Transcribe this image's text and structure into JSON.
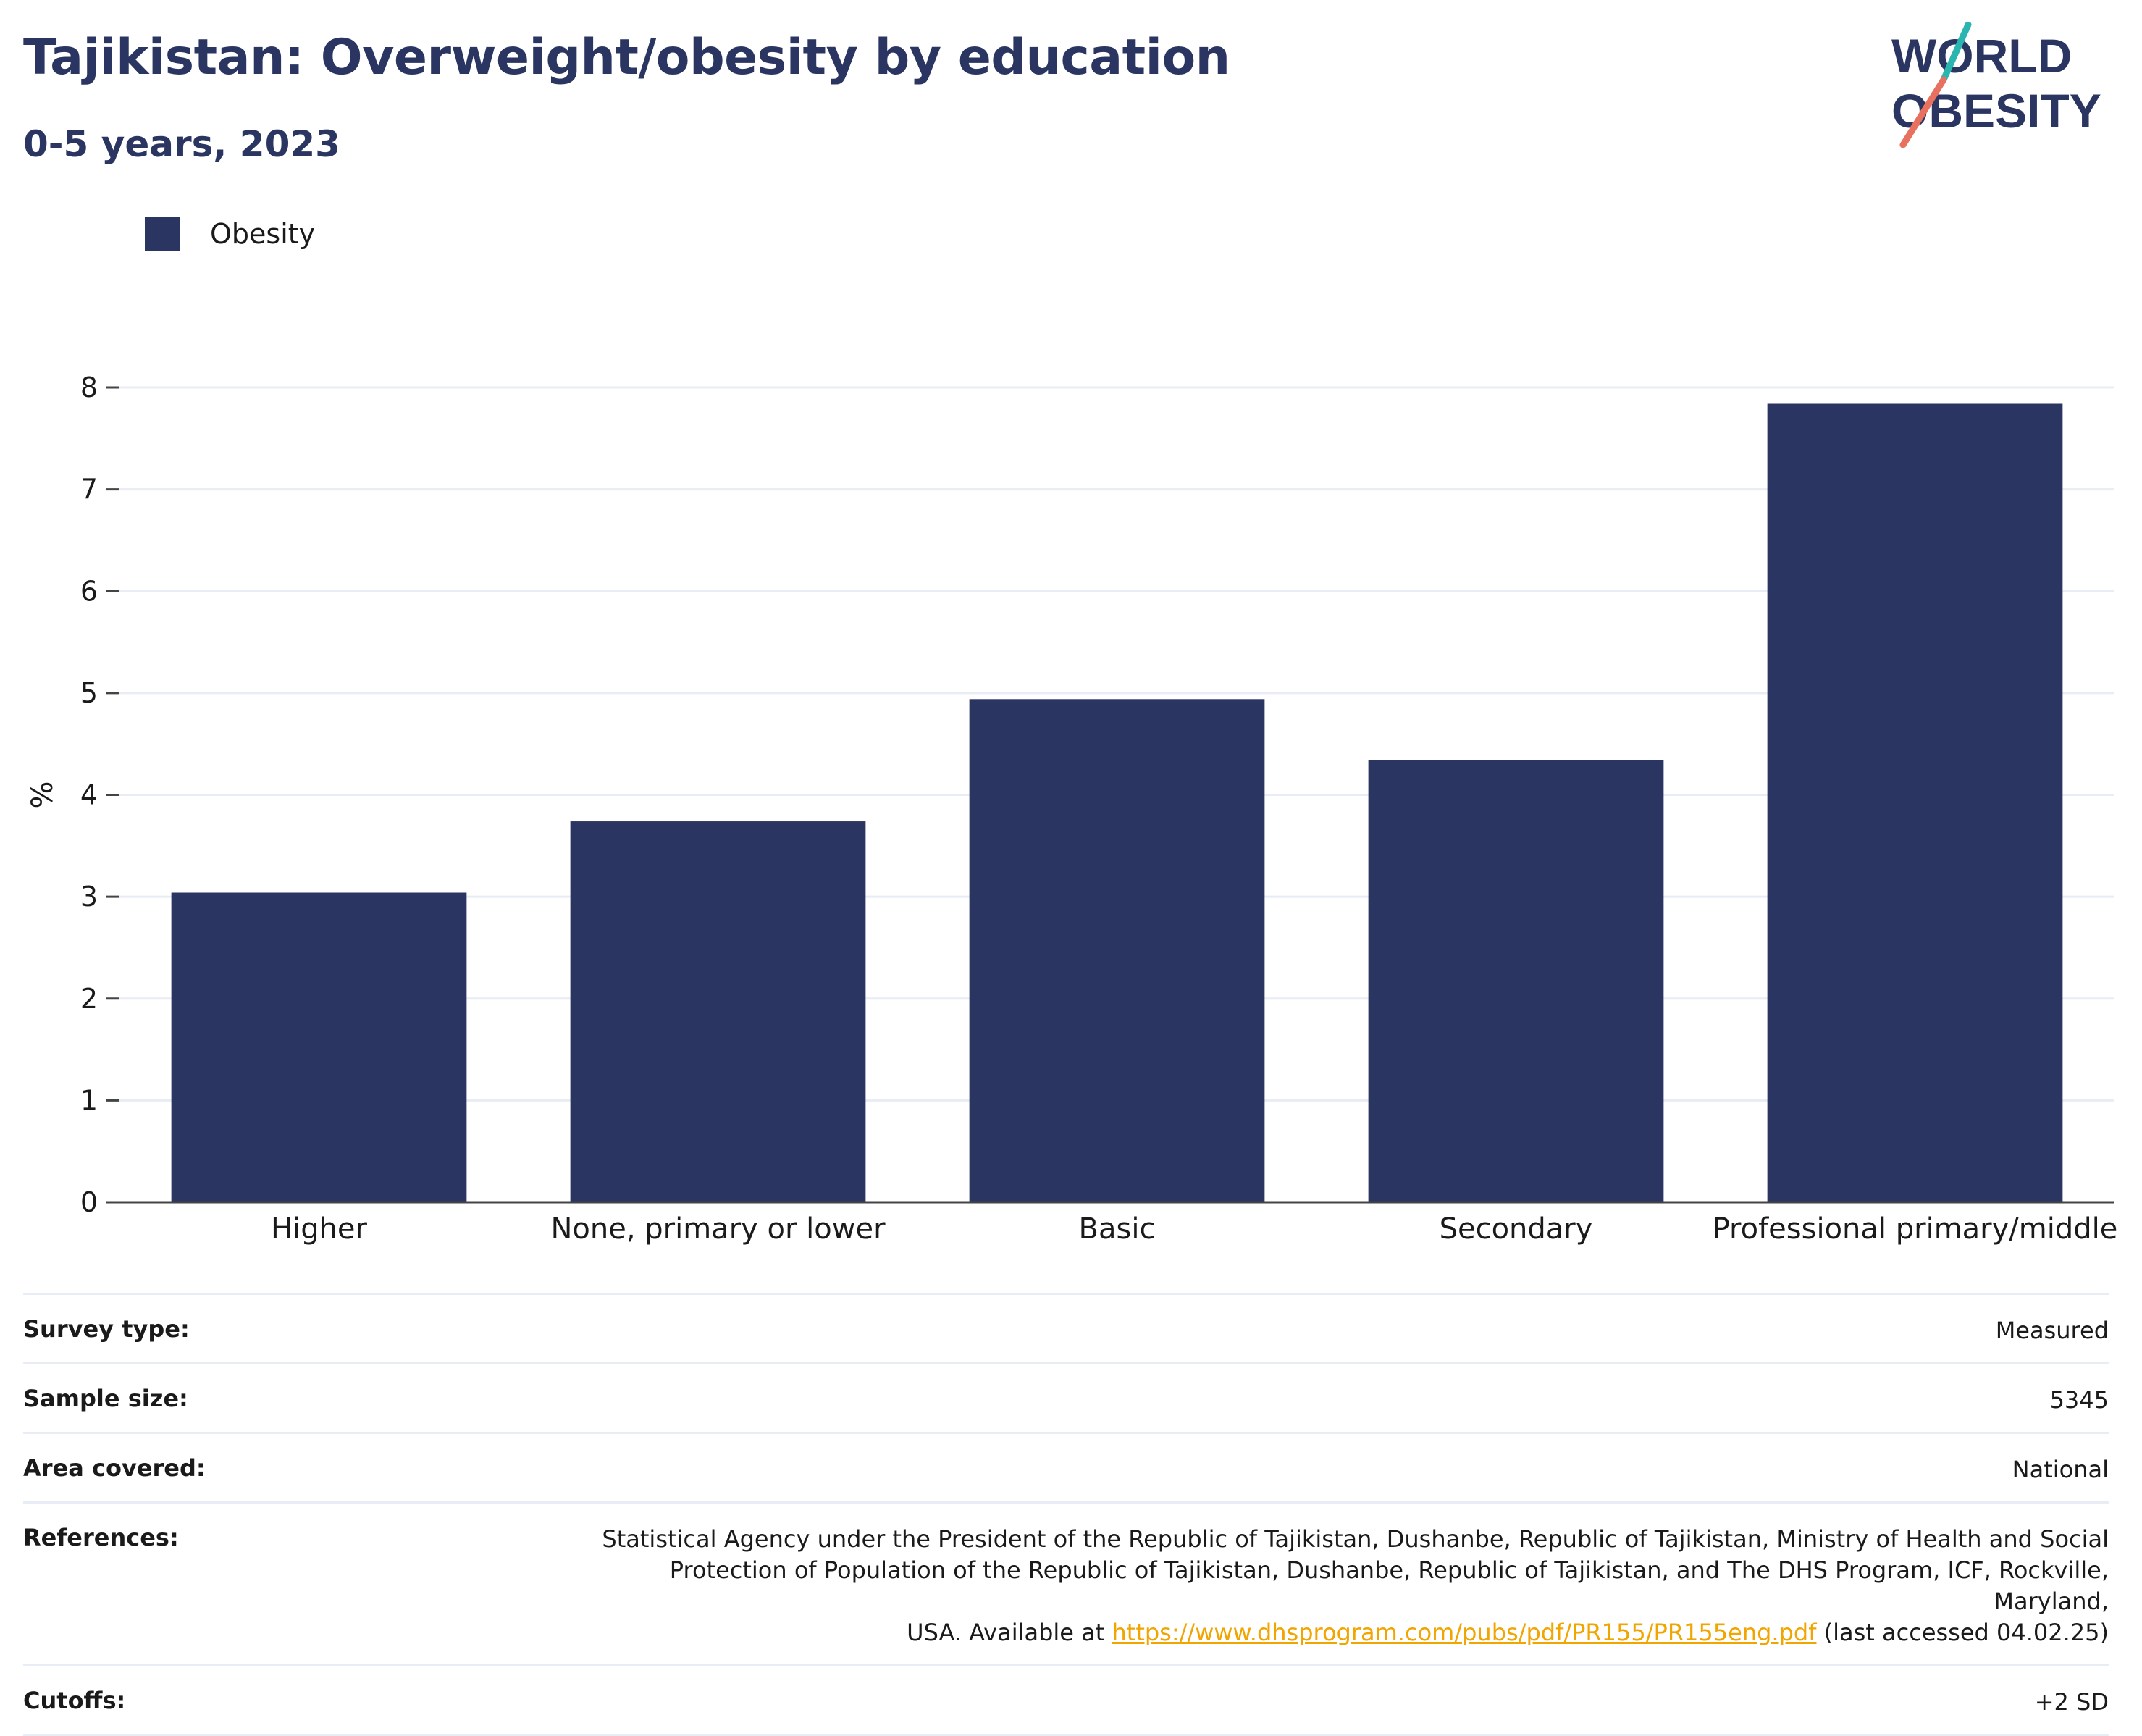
{
  "header": {
    "title": "Tajikistan: Overweight/obesity by education",
    "subtitle": "0-5 years, 2023"
  },
  "logo": {
    "line1": "WORLD",
    "line2": "OBESITY"
  },
  "legend": {
    "label": "Obesity"
  },
  "chart_data": {
    "type": "bar",
    "categories": [
      "Higher",
      "None, primary or lower",
      "Basic",
      "Secondary",
      "Professional primary/middle"
    ],
    "series": [
      {
        "name": "Obesity",
        "values": [
          3.04,
          3.74,
          4.94,
          4.34,
          7.84
        ],
        "color": "#2a3561"
      }
    ],
    "title": "Tajikistan: Overweight/obesity by education",
    "subtitle": "0-5 years, 2023",
    "xlabel": "",
    "ylabel": "%",
    "ylim": [
      0,
      8
    ],
    "yticks": [
      0,
      1,
      2,
      3,
      4,
      5,
      6,
      7,
      8
    ],
    "grid": true,
    "legend_position": "top-left"
  },
  "info": {
    "survey_type": {
      "label": "Survey type:",
      "value": "Measured"
    },
    "sample_size": {
      "label": "Sample size:",
      "value": "5345"
    },
    "area_covered": {
      "label": "Area covered:",
      "value": "National"
    },
    "references": {
      "label": "References:",
      "line1": "Statistical Agency under the President of the Republic of Tajikistan, Dushanbe, Republic of Tajikistan, Ministry of Health and Social",
      "line2": "Protection of Population of the Republic of Tajikistan, Dushanbe, Republic of Tajikistan, and The DHS Program, ICF, Rockville, Maryland,",
      "line3_prefix": "USA. Available at ",
      "link": "https://www.dhsprogram.com/pubs/pdf/PR155/PR155eng.pdf",
      "line3_suffix": " (last accessed 04.02.25)"
    },
    "cutoffs": {
      "label": "Cutoffs:",
      "value": "+2 SD"
    }
  },
  "colors": {
    "primary": "#2a3561",
    "logo_teal": "#2bb5b0",
    "logo_coral": "#e8705f",
    "link": "#f0a500",
    "grid": "#e8ecf5"
  }
}
